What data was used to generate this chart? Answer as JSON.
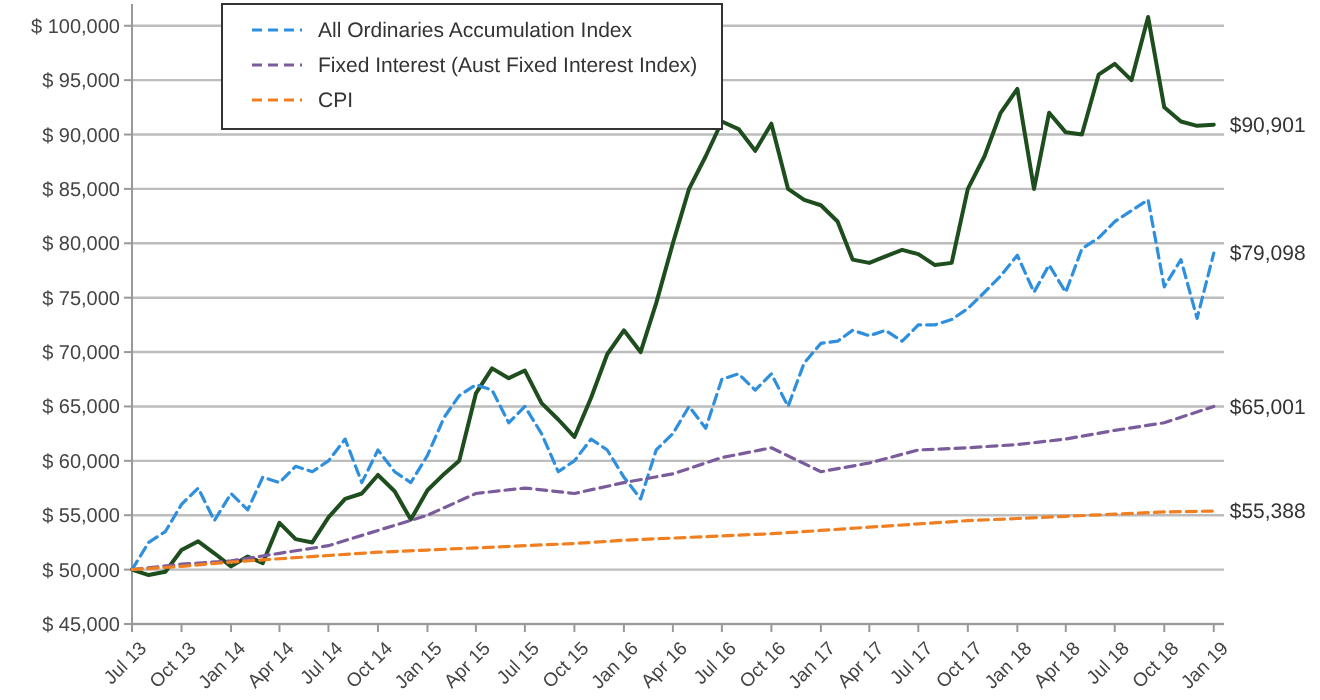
{
  "chart_data": {
    "type": "line",
    "legend": "top left",
    "grid": "y",
    "xlim": [
      "2013-07",
      "2019-01-20"
    ],
    "ylim": [
      45000,
      102000
    ],
    "yticks": [
      {
        "value": 45000,
        "label": "$ 45,000"
      },
      {
        "value": 50000,
        "label": "$ 50,000"
      },
      {
        "value": 55000,
        "label": "$ 55,000"
      },
      {
        "value": 60000,
        "label": "$ 60,000"
      },
      {
        "value": 65000,
        "label": "$ 65,000"
      },
      {
        "value": 70000,
        "label": "$ 70,000"
      },
      {
        "value": 75000,
        "label": "$ 75,000"
      },
      {
        "value": 80000,
        "label": "$ 80,000"
      },
      {
        "value": 85000,
        "label": "$ 85,000"
      },
      {
        "value": 90000,
        "label": "$ 90,000"
      },
      {
        "value": 95000,
        "label": "$ 95,000"
      },
      {
        "value": 100000,
        "label": "$ 100,000"
      }
    ],
    "xticks": [
      {
        "value": "2013-07",
        "label": "Jul 13"
      },
      {
        "value": "2013-10",
        "label": "Oct 13"
      },
      {
        "value": "2014-01",
        "label": "Jan 14"
      },
      {
        "value": "2014-04",
        "label": "Apr 14"
      },
      {
        "value": "2014-07",
        "label": "Jul 14"
      },
      {
        "value": "2014-10",
        "label": "Oct 14"
      },
      {
        "value": "2015-01",
        "label": "Jan 15"
      },
      {
        "value": "2015-04",
        "label": "Apr 15"
      },
      {
        "value": "2015-07",
        "label": "Jul 15"
      },
      {
        "value": "2015-10",
        "label": "Oct 15"
      },
      {
        "value": "2016-01",
        "label": "Jan 16"
      },
      {
        "value": "2016-04",
        "label": "Apr 16"
      },
      {
        "value": "2016-07",
        "label": "Jul 16"
      },
      {
        "value": "2016-10",
        "label": "Oct 16"
      },
      {
        "value": "2017-01",
        "label": "Jan 17"
      },
      {
        "value": "2017-04",
        "label": "Apr 17"
      },
      {
        "value": "2017-07",
        "label": "Jul 17"
      },
      {
        "value": "2017-10",
        "label": "Oct 17"
      },
      {
        "value": "2018-01",
        "label": "Jan 18"
      },
      {
        "value": "2018-04",
        "label": "Apr 18"
      },
      {
        "value": "2018-07",
        "label": "Jul 18"
      },
      {
        "value": "2018-10",
        "label": "Oct 18"
      },
      {
        "value": "2019-01",
        "label": "Jan 19"
      }
    ],
    "series": [
      {
        "color": "#1e4d1e",
        "line_style": "solid",
        "x": [
          "2013-07",
          "2013-08",
          "2013-09",
          "2013-10",
          "2013-11",
          "2013-12",
          "2014-01",
          "2014-02",
          "2014-03",
          "2014-04",
          "2014-05",
          "2014-06",
          "2014-07",
          "2014-08",
          "2014-09",
          "2014-10",
          "2014-11",
          "2014-12",
          "2015-01",
          "2015-02",
          "2015-03",
          "2015-04",
          "2015-05",
          "2015-06",
          "2015-07",
          "2015-08",
          "2015-09",
          "2015-10",
          "2015-11",
          "2015-12",
          "2016-01",
          "2016-02",
          "2016-03",
          "2016-04",
          "2016-05",
          "2016-06",
          "2016-07",
          "2016-08",
          "2016-09",
          "2016-10",
          "2016-11",
          "2016-12",
          "2017-01",
          "2017-02",
          "2017-03",
          "2017-04",
          "2017-05",
          "2017-06",
          "2017-07",
          "2017-08",
          "2017-09",
          "2017-10",
          "2017-11",
          "2017-12",
          "2018-01",
          "2018-02",
          "2018-03",
          "2018-04",
          "2018-05",
          "2018-06",
          "2018-07",
          "2018-08",
          "2018-09",
          "2018-10",
          "2018-11",
          "2018-12",
          "2019-01"
        ],
        "values": [
          50000,
          49500,
          49800,
          51800,
          52600,
          51500,
          50300,
          51200,
          50600,
          54300,
          52800,
          52500,
          54800,
          56500,
          57000,
          58700,
          57200,
          54600,
          57300,
          58800,
          60000,
          66200,
          68500,
          67600,
          68300,
          65300,
          63800,
          62200,
          65800,
          69800,
          72000,
          70000,
          74500,
          80000,
          85000,
          88000,
          91200,
          90500,
          88500,
          91000,
          85000,
          84000,
          83500,
          82000,
          78500,
          78200,
          78800,
          79400,
          79000,
          78000,
          78200,
          85000,
          88000,
          92000,
          94200,
          85000,
          92000,
          90200,
          90000,
          95500,
          96500,
          95000,
          100800,
          92500,
          91200,
          90800,
          90901
        ]
      },
      {
        "name": "All Ordinaries Accumulation Index",
        "color": "#2e8fde",
        "line_style": "dashed",
        "x": [
          "2013-07",
          "2013-08",
          "2013-09",
          "2013-10",
          "2013-11",
          "2013-12",
          "2014-01",
          "2014-02",
          "2014-03",
          "2014-04",
          "2014-05",
          "2014-06",
          "2014-07",
          "2014-08",
          "2014-09",
          "2014-10",
          "2014-11",
          "2014-12",
          "2015-01",
          "2015-02",
          "2015-03",
          "2015-04",
          "2015-05",
          "2015-06",
          "2015-07",
          "2015-08",
          "2015-09",
          "2015-10",
          "2015-11",
          "2015-12",
          "2016-01",
          "2016-02",
          "2016-03",
          "2016-04",
          "2016-05",
          "2016-06",
          "2016-07",
          "2016-08",
          "2016-09",
          "2016-10",
          "2016-11",
          "2016-12",
          "2017-01",
          "2017-02",
          "2017-03",
          "2017-04",
          "2017-05",
          "2017-06",
          "2017-07",
          "2017-08",
          "2017-09",
          "2017-10",
          "2017-11",
          "2017-12",
          "2018-01",
          "2018-02",
          "2018-03",
          "2018-04",
          "2018-05",
          "2018-06",
          "2018-07",
          "2018-08",
          "2018-09",
          "2018-10",
          "2018-11",
          "2018-12",
          "2019-01"
        ],
        "values": [
          50000,
          52500,
          53500,
          56000,
          57500,
          54500,
          57000,
          55500,
          58500,
          58000,
          59500,
          59000,
          60000,
          62000,
          58000,
          61000,
          59000,
          58000,
          60500,
          64000,
          66000,
          67000,
          66500,
          63500,
          65000,
          62500,
          59000,
          60000,
          62000,
          61000,
          58500,
          56500,
          61000,
          62500,
          65000,
          63000,
          67500,
          68000,
          66500,
          68000,
          65000,
          69000,
          70800,
          71000,
          72000,
          71500,
          72000,
          71000,
          72500,
          72500,
          73000,
          74000,
          75500,
          77000,
          78900,
          75500,
          78000,
          75500,
          79500,
          80500,
          82000,
          83000,
          84000,
          76000,
          78500,
          73100,
          79098
        ]
      },
      {
        "name": "Fixed Interest (Aust Fixed Interest Index)",
        "color": "#7a5c9c",
        "line_style": "dashed",
        "x": [
          "2013-07",
          "2013-10",
          "2014-01",
          "2014-04",
          "2014-07",
          "2014-10",
          "2015-01",
          "2015-04",
          "2015-07",
          "2015-10",
          "2016-01",
          "2016-04",
          "2016-07",
          "2016-10",
          "2017-01",
          "2017-04",
          "2017-07",
          "2017-10",
          "2018-01",
          "2018-04",
          "2018-07",
          "2018-10",
          "2019-01"
        ],
        "values": [
          50000,
          50500,
          50800,
          51500,
          52200,
          53600,
          55000,
          57000,
          57500,
          57000,
          58000,
          58800,
          60300,
          61200,
          59000,
          59800,
          61000,
          61200,
          61500,
          62000,
          62800,
          63500,
          65001
        ]
      },
      {
        "name": "CPI",
        "color": "#f07f22",
        "line_style": "dashed",
        "x": [
          "2013-07",
          "2013-10",
          "2014-01",
          "2014-04",
          "2014-07",
          "2014-10",
          "2015-01",
          "2015-04",
          "2015-07",
          "2015-10",
          "2016-01",
          "2016-04",
          "2016-07",
          "2016-10",
          "2017-01",
          "2017-04",
          "2017-07",
          "2017-10",
          "2018-01",
          "2018-04",
          "2018-07",
          "2018-10",
          "2019-01"
        ],
        "values": [
          50000,
          50300,
          50700,
          51000,
          51300,
          51600,
          51800,
          52000,
          52200,
          52400,
          52700,
          52900,
          53100,
          53300,
          53600,
          53900,
          54200,
          54500,
          54700,
          54900,
          55100,
          55300,
          55388
        ]
      }
    ],
    "annotations": [
      {
        "text": "$90,901",
        "x": "2019-01",
        "y": 90901
      },
      {
        "text": "$79,098",
        "x": "2019-01",
        "y": 79098
      },
      {
        "text": "$65,001",
        "x": "2019-01",
        "y": 65001
      },
      {
        "text": "$55,388",
        "x": "2019-01",
        "y": 55388
      }
    ]
  }
}
